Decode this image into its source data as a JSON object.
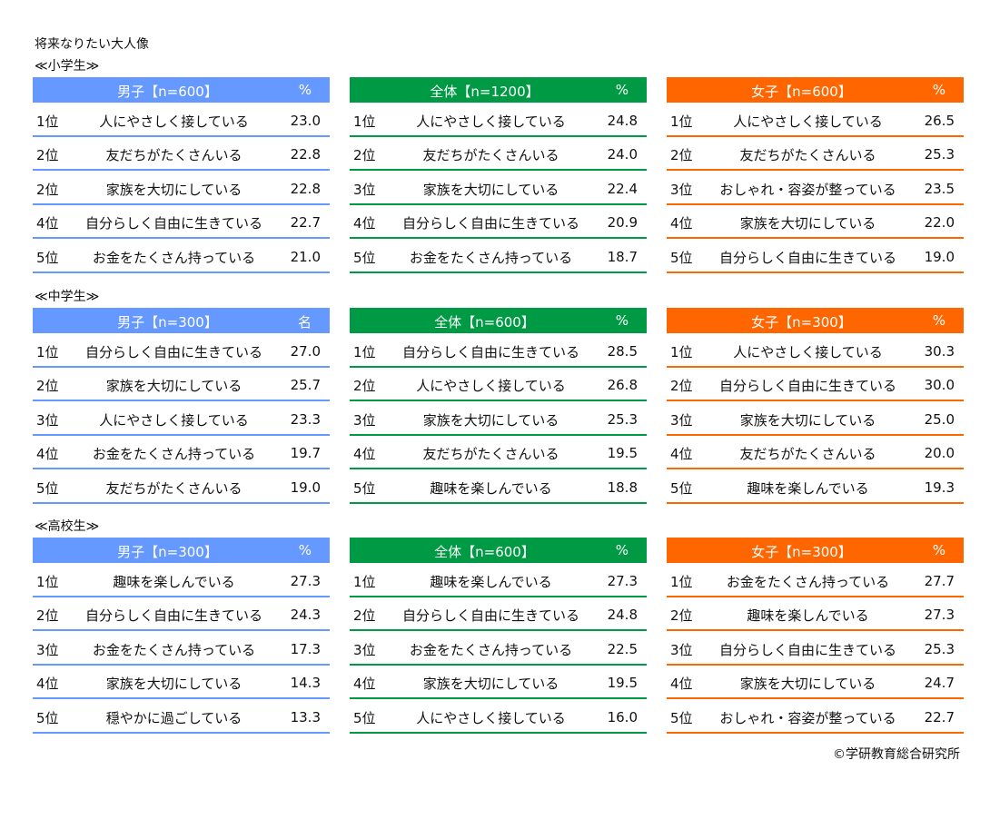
{
  "title": "将来なりたい大人像",
  "copyright": "©学研教育総合研究所",
  "colors": {
    "boys": "#6699ff",
    "all": "#009944",
    "girls": "#ff6600"
  },
  "sections": [
    {
      "label": "≪小学生≫",
      "panels": [
        {
          "header": "男子【n=600】",
          "unit": "%",
          "rows": [
            {
              "rank": "1位",
              "item": "人にやさしく接している",
              "value": "23.0"
            },
            {
              "rank": "2位",
              "item": "友だちがたくさんいる",
              "value": "22.8"
            },
            {
              "rank": "2位",
              "item": "家族を大切にしている",
              "value": "22.8"
            },
            {
              "rank": "4位",
              "item": "自分らしく自由に生きている",
              "value": "22.7"
            },
            {
              "rank": "5位",
              "item": "お金をたくさん持っている",
              "value": "21.0"
            }
          ]
        },
        {
          "header": "全体【n=1200】",
          "unit": "%",
          "rows": [
            {
              "rank": "1位",
              "item": "人にやさしく接している",
              "value": "24.8"
            },
            {
              "rank": "2位",
              "item": "友だちがたくさんいる",
              "value": "24.0"
            },
            {
              "rank": "3位",
              "item": "家族を大切にしている",
              "value": "22.4"
            },
            {
              "rank": "4位",
              "item": "自分らしく自由に生きている",
              "value": "20.9"
            },
            {
              "rank": "5位",
              "item": "お金をたくさん持っている",
              "value": "18.7"
            }
          ]
        },
        {
          "header": "女子【n=600】",
          "unit": "%",
          "rows": [
            {
              "rank": "1位",
              "item": "人にやさしく接している",
              "value": "26.5"
            },
            {
              "rank": "2位",
              "item": "友だちがたくさんいる",
              "value": "25.3"
            },
            {
              "rank": "3位",
              "item": "おしゃれ・容姿が整っている",
              "value": "23.5"
            },
            {
              "rank": "4位",
              "item": "家族を大切にしている",
              "value": "22.0"
            },
            {
              "rank": "5位",
              "item": "自分らしく自由に生きている",
              "value": "19.0"
            }
          ]
        }
      ]
    },
    {
      "label": "≪中学生≫",
      "panels": [
        {
          "header": "男子【n=300】",
          "unit": "名",
          "rows": [
            {
              "rank": "1位",
              "item": "自分らしく自由に生きている",
              "value": "27.0"
            },
            {
              "rank": "2位",
              "item": "家族を大切にしている",
              "value": "25.7"
            },
            {
              "rank": "3位",
              "item": "人にやさしく接している",
              "value": "23.3"
            },
            {
              "rank": "4位",
              "item": "お金をたくさん持っている",
              "value": "19.7"
            },
            {
              "rank": "5位",
              "item": "友だちがたくさんいる",
              "value": "19.0"
            }
          ]
        },
        {
          "header": "全体【n=600】",
          "unit": "%",
          "rows": [
            {
              "rank": "1位",
              "item": "自分らしく自由に生きている",
              "value": "28.5"
            },
            {
              "rank": "2位",
              "item": "人にやさしく接している",
              "value": "26.8"
            },
            {
              "rank": "3位",
              "item": "家族を大切にしている",
              "value": "25.3"
            },
            {
              "rank": "4位",
              "item": "友だちがたくさんいる",
              "value": "19.5"
            },
            {
              "rank": "5位",
              "item": "趣味を楽しんでいる",
              "value": "18.8"
            }
          ]
        },
        {
          "header": "女子【n=300】",
          "unit": "%",
          "rows": [
            {
              "rank": "1位",
              "item": "人にやさしく接している",
              "value": "30.3"
            },
            {
              "rank": "2位",
              "item": "自分らしく自由に生きている",
              "value": "30.0"
            },
            {
              "rank": "3位",
              "item": "家族を大切にしている",
              "value": "25.0"
            },
            {
              "rank": "4位",
              "item": "友だちがたくさんいる",
              "value": "20.0"
            },
            {
              "rank": "5位",
              "item": "趣味を楽しんでいる",
              "value": "19.3"
            }
          ]
        }
      ]
    },
    {
      "label": "≪高校生≫",
      "panels": [
        {
          "header": "男子【n=300】",
          "unit": "%",
          "rows": [
            {
              "rank": "1位",
              "item": "趣味を楽しんでいる",
              "value": "27.3"
            },
            {
              "rank": "2位",
              "item": "自分らしく自由に生きている",
              "value": "24.3"
            },
            {
              "rank": "3位",
              "item": "お金をたくさん持っている",
              "value": "17.3"
            },
            {
              "rank": "4位",
              "item": "家族を大切にしている",
              "value": "14.3"
            },
            {
              "rank": "5位",
              "item": "穏やかに過ごしている",
              "value": "13.3"
            }
          ]
        },
        {
          "header": "全体【n=600】",
          "unit": "%",
          "rows": [
            {
              "rank": "1位",
              "item": "趣味を楽しんでいる",
              "value": "27.3"
            },
            {
              "rank": "2位",
              "item": "自分らしく自由に生きている",
              "value": "24.8"
            },
            {
              "rank": "3位",
              "item": "お金をたくさん持っている",
              "value": "22.5"
            },
            {
              "rank": "4位",
              "item": "家族を大切にしている",
              "value": "19.5"
            },
            {
              "rank": "5位",
              "item": "人にやさしく接している",
              "value": "16.0"
            }
          ]
        },
        {
          "header": "女子【n=300】",
          "unit": "%",
          "rows": [
            {
              "rank": "1位",
              "item": "お金をたくさん持っている",
              "value": "27.7"
            },
            {
              "rank": "2位",
              "item": "趣味を楽しんでいる",
              "value": "27.3"
            },
            {
              "rank": "3位",
              "item": "自分らしく自由に生きている",
              "value": "25.3"
            },
            {
              "rank": "4位",
              "item": "家族を大切にしている",
              "value": "24.7"
            },
            {
              "rank": "5位",
              "item": "おしゃれ・容姿が整っている",
              "value": "22.7"
            }
          ]
        }
      ]
    }
  ]
}
